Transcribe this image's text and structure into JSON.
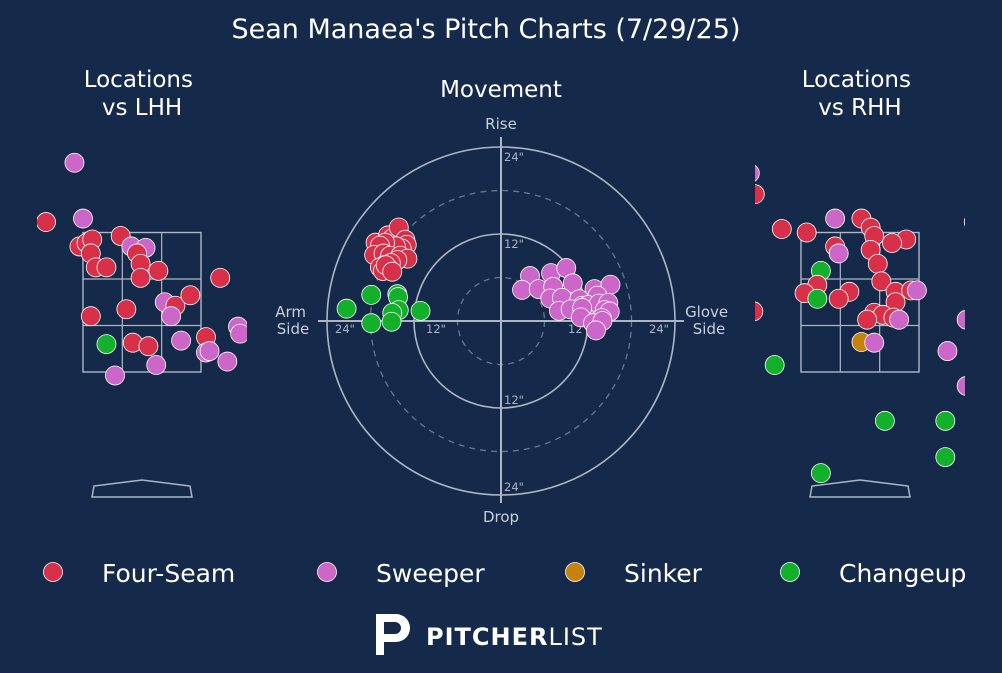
{
  "title": "Sean Manaea's Pitch Charts (7/29/25)",
  "colors": {
    "background": "#152a4b",
    "grid": "#aeb6c4",
    "Four-Seam": "#d9304a",
    "Sweeper": "#cc66c8",
    "Sinker": "#c7820e",
    "Changeup": "#13b02c"
  },
  "legend": [
    {
      "name": "Four-Seam"
    },
    {
      "name": "Sweeper"
    },
    {
      "name": "Sinker"
    },
    {
      "name": "Changeup"
    }
  ],
  "brand": {
    "bold": "PITCHER",
    "light": "LIST"
  },
  "chart_data": [
    {
      "id": "lhh",
      "type": "scatter",
      "title": "Locations\nvs LHH",
      "zone": {
        "left": -0.83,
        "right": 0.83,
        "bottom": 1.5,
        "top": 3.5
      },
      "points": [
        {
          "t": "Sweeper",
          "x": -0.95,
          "y": 4.5
        },
        {
          "t": "Four-Seam",
          "x": -1.35,
          "y": 3.65
        },
        {
          "t": "Sweeper",
          "x": -0.83,
          "y": 3.7
        },
        {
          "t": "Four-Seam",
          "x": -0.88,
          "y": 3.3
        },
        {
          "t": "Four-Seam",
          "x": -0.78,
          "y": 3.35
        },
        {
          "t": "Four-Seam",
          "x": -0.7,
          "y": 3.4
        },
        {
          "t": "Four-Seam",
          "x": -0.72,
          "y": 3.2
        },
        {
          "t": "Four-Seam",
          "x": -0.65,
          "y": 3.0
        },
        {
          "t": "Four-Seam",
          "x": -0.5,
          "y": 3.0
        },
        {
          "t": "Four-Seam",
          "x": -0.3,
          "y": 3.45
        },
        {
          "t": "Sweeper",
          "x": -0.15,
          "y": 3.3
        },
        {
          "t": "Sweeper",
          "x": 0.05,
          "y": 3.28
        },
        {
          "t": "Four-Seam",
          "x": -0.07,
          "y": 3.2
        },
        {
          "t": "Four-Seam",
          "x": -0.02,
          "y": 3.05
        },
        {
          "t": "Four-Seam",
          "x": -0.02,
          "y": 2.85
        },
        {
          "t": "Four-Seam",
          "x": 0.23,
          "y": 2.95
        },
        {
          "t": "Four-Seam",
          "x": -0.22,
          "y": 2.4
        },
        {
          "t": "Sweeper",
          "x": 0.32,
          "y": 2.5
        },
        {
          "t": "Four-Seam",
          "x": 0.47,
          "y": 2.45
        },
        {
          "t": "Four-Seam",
          "x": 0.68,
          "y": 2.6
        },
        {
          "t": "Sweeper",
          "x": 0.41,
          "y": 2.3
        },
        {
          "t": "Four-Seam",
          "x": 1.1,
          "y": 2.85
        },
        {
          "t": "Four-Seam",
          "x": -0.72,
          "y": 2.3
        },
        {
          "t": "Sweeper",
          "x": 1.35,
          "y": 2.15
        },
        {
          "t": "Sweeper",
          "x": 1.38,
          "y": 2.05
        },
        {
          "t": "Changeup",
          "x": -0.5,
          "y": 1.9
        },
        {
          "t": "Four-Seam",
          "x": -0.13,
          "y": 1.92
        },
        {
          "t": "Four-Seam",
          "x": 0.09,
          "y": 1.87
        },
        {
          "t": "Sweeper",
          "x": 0.55,
          "y": 1.95
        },
        {
          "t": "Four-Seam",
          "x": 0.9,
          "y": 2.0
        },
        {
          "t": "Sweeper",
          "x": 0.9,
          "y": 1.78
        },
        {
          "t": "Sweeper",
          "x": 0.95,
          "y": 1.8
        },
        {
          "t": "Sweeper",
          "x": 1.2,
          "y": 1.65
        },
        {
          "t": "Sweeper",
          "x": 0.2,
          "y": 1.6
        },
        {
          "t": "Sweeper",
          "x": -0.38,
          "y": 1.45
        }
      ]
    },
    {
      "id": "movement",
      "type": "scatter",
      "title": "Movement",
      "axis_labels": {
        "top": "Rise",
        "bottom": "Drop",
        "left": "Arm\nSide",
        "right": "Glove\nSide"
      },
      "rings": [
        {
          "r": 6,
          "label": "",
          "dashed": true
        },
        {
          "r": 12,
          "label": "12\"",
          "dashed": false
        },
        {
          "r": 18,
          "label": "",
          "dashed": true
        },
        {
          "r": 24,
          "label": "24\"",
          "dashed": false
        }
      ],
      "points": [
        {
          "t": "Four-Seam",
          "x": -17.3,
          "y": 10.8
        },
        {
          "t": "Four-Seam",
          "x": -15.6,
          "y": 11.8
        },
        {
          "t": "Four-Seam",
          "x": -15.0,
          "y": 11.4
        },
        {
          "t": "Four-Seam",
          "x": -14.1,
          "y": 12.9
        },
        {
          "t": "Four-Seam",
          "x": -13.2,
          "y": 11.2
        },
        {
          "t": "Four-Seam",
          "x": -13.0,
          "y": 10.5
        },
        {
          "t": "Four-Seam",
          "x": -13.7,
          "y": 10.0
        },
        {
          "t": "Four-Seam",
          "x": -14.5,
          "y": 10.3
        },
        {
          "t": "Four-Seam",
          "x": -16.0,
          "y": 10.8
        },
        {
          "t": "Four-Seam",
          "x": -16.7,
          "y": 10.4
        },
        {
          "t": "Four-Seam",
          "x": -17.5,
          "y": 9.1
        },
        {
          "t": "Four-Seam",
          "x": -16.2,
          "y": 9.3
        },
        {
          "t": "Four-Seam",
          "x": -15.3,
          "y": 9.0
        },
        {
          "t": "Four-Seam",
          "x": -13.9,
          "y": 9.0
        },
        {
          "t": "Four-Seam",
          "x": -12.9,
          "y": 8.6
        },
        {
          "t": "Four-Seam",
          "x": -14.3,
          "y": 8.4
        },
        {
          "t": "Four-Seam",
          "x": -15.2,
          "y": 8.0
        },
        {
          "t": "Four-Seam",
          "x": -16.1,
          "y": 7.7
        },
        {
          "t": "Four-Seam",
          "x": -16.7,
          "y": 7.4
        },
        {
          "t": "Four-Seam",
          "x": -15.5,
          "y": 7.2
        },
        {
          "t": "Four-Seam",
          "x": -16.3,
          "y": 6.9
        },
        {
          "t": "Four-Seam",
          "x": -15.9,
          "y": 7.7
        },
        {
          "t": "Four-Seam",
          "x": -15.0,
          "y": 6.8
        },
        {
          "t": "Changeup",
          "x": -21.3,
          "y": 1.7
        },
        {
          "t": "Changeup",
          "x": -17.9,
          "y": 3.6
        },
        {
          "t": "Changeup",
          "x": -14.3,
          "y": 3.7
        },
        {
          "t": "Changeup",
          "x": -14.2,
          "y": 3.3
        },
        {
          "t": "Changeup",
          "x": -14.1,
          "y": 1.5
        },
        {
          "t": "Changeup",
          "x": -15.0,
          "y": 1.1
        },
        {
          "t": "Changeup",
          "x": -11.1,
          "y": 1.4
        },
        {
          "t": "Changeup",
          "x": -17.9,
          "y": -0.3
        },
        {
          "t": "Changeup",
          "x": -15.1,
          "y": -0.1
        },
        {
          "t": "Sweeper",
          "x": 4.0,
          "y": 6.2
        },
        {
          "t": "Sweeper",
          "x": 6.9,
          "y": 6.6
        },
        {
          "t": "Sweeper",
          "x": 9.0,
          "y": 7.3
        },
        {
          "t": "Sweeper",
          "x": 2.9,
          "y": 4.3
        },
        {
          "t": "Sweeper",
          "x": 5.2,
          "y": 4.4
        },
        {
          "t": "Sweeper",
          "x": 7.2,
          "y": 4.7
        },
        {
          "t": "Sweeper",
          "x": 9.9,
          "y": 5.2
        },
        {
          "t": "Sweeper",
          "x": 12.9,
          "y": 4.4
        },
        {
          "t": "Sweeper",
          "x": 15.1,
          "y": 5.0
        },
        {
          "t": "Sweeper",
          "x": 6.8,
          "y": 3.1
        },
        {
          "t": "Sweeper",
          "x": 8.4,
          "y": 3.2
        },
        {
          "t": "Sweeper",
          "x": 10.8,
          "y": 3.0
        },
        {
          "t": "Sweeper",
          "x": 13.3,
          "y": 3.5
        },
        {
          "t": "Sweeper",
          "x": 11.2,
          "y": 2.1
        },
        {
          "t": "Sweeper",
          "x": 12.0,
          "y": 2.2
        },
        {
          "t": "Sweeper",
          "x": 13.5,
          "y": 2.4
        },
        {
          "t": "Sweeper",
          "x": 14.8,
          "y": 2.5
        },
        {
          "t": "Sweeper",
          "x": 8.0,
          "y": 1.4
        },
        {
          "t": "Sweeper",
          "x": 9.6,
          "y": 1.6
        },
        {
          "t": "Sweeper",
          "x": 11.2,
          "y": 1.8
        },
        {
          "t": "Sweeper",
          "x": 14.3,
          "y": 1.5
        },
        {
          "t": "Sweeper",
          "x": 15.0,
          "y": 1.3
        },
        {
          "t": "Sweeper",
          "x": 11.0,
          "y": 0.5
        },
        {
          "t": "Sweeper",
          "x": 13.9,
          "y": 0.4
        },
        {
          "t": "Sweeper",
          "x": 12.7,
          "y": -0.3
        },
        {
          "t": "Sweeper",
          "x": 14.0,
          "y": 0.0
        },
        {
          "t": "Sweeper",
          "x": 13.1,
          "y": -1.3
        }
      ]
    },
    {
      "id": "rhh",
      "type": "scatter",
      "title": "Locations\nvs RHH",
      "zone": {
        "left": -0.83,
        "right": 0.83,
        "bottom": 1.5,
        "top": 3.5
      },
      "points": [
        {
          "t": "Sweeper",
          "x": -1.55,
          "y": 4.35
        },
        {
          "t": "Four-Seam",
          "x": -1.48,
          "y": 4.05
        },
        {
          "t": "Four-Seam",
          "x": -1.1,
          "y": 3.55
        },
        {
          "t": "Four-Seam",
          "x": -0.75,
          "y": 3.5
        },
        {
          "t": "Sweeper",
          "x": -0.35,
          "y": 3.7
        },
        {
          "t": "Four-Seam",
          "x": 0.02,
          "y": 3.7
        },
        {
          "t": "Four-Seam",
          "x": 0.15,
          "y": 3.57
        },
        {
          "t": "Four-Seam",
          "x": 0.2,
          "y": 3.45
        },
        {
          "t": "Four-Seam",
          "x": 0.65,
          "y": 3.4
        },
        {
          "t": "Four-Seam",
          "x": 1.6,
          "y": 3.65
        },
        {
          "t": "Four-Seam",
          "x": 0.45,
          "y": 3.35
        },
        {
          "t": "Four-Seam",
          "x": 0.15,
          "y": 3.25
        },
        {
          "t": "Four-Seam",
          "x": -0.35,
          "y": 3.3
        },
        {
          "t": "Sweeper",
          "x": -0.3,
          "y": 3.2
        },
        {
          "t": "Four-Seam",
          "x": 0.25,
          "y": 3.05
        },
        {
          "t": "Changeup",
          "x": -0.55,
          "y": 2.95
        },
        {
          "t": "Four-Seam",
          "x": -0.6,
          "y": 2.75
        },
        {
          "t": "Four-Seam",
          "x": -0.78,
          "y": 2.63
        },
        {
          "t": "Four-Seam",
          "x": -0.15,
          "y": 2.65
        },
        {
          "t": "Four-Seam",
          "x": 0.3,
          "y": 2.8
        },
        {
          "t": "Four-Seam",
          "x": 0.5,
          "y": 2.65
        },
        {
          "t": "Four-Seam",
          "x": 0.72,
          "y": 2.67
        },
        {
          "t": "Sweeper",
          "x": 0.8,
          "y": 2.67
        },
        {
          "t": "Changeup",
          "x": -0.6,
          "y": 2.55
        },
        {
          "t": "Four-Seam",
          "x": -0.3,
          "y": 2.55
        },
        {
          "t": "Four-Seam",
          "x": 0.5,
          "y": 2.5
        },
        {
          "t": "Four-Seam",
          "x": 0.2,
          "y": 2.35
        },
        {
          "t": "Four-Seam",
          "x": 0.32,
          "y": 2.32
        },
        {
          "t": "Four-Seam",
          "x": 0.47,
          "y": 2.28
        },
        {
          "t": "Four-Seam",
          "x": 0.1,
          "y": 2.25
        },
        {
          "t": "Sweeper",
          "x": 0.55,
          "y": 2.25
        },
        {
          "t": "Four-Seam",
          "x": -1.5,
          "y": 2.37
        },
        {
          "t": "Sweeper",
          "x": 1.5,
          "y": 2.25
        },
        {
          "t": "Sinker",
          "x": 0.02,
          "y": 1.93
        },
        {
          "t": "Sweeper",
          "x": 0.2,
          "y": 1.92
        },
        {
          "t": "Sweeper",
          "x": 1.23,
          "y": 1.8
        },
        {
          "t": "Changeup",
          "x": -1.2,
          "y": 1.6
        },
        {
          "t": "Sweeper",
          "x": 1.5,
          "y": 1.3
        },
        {
          "t": "Changeup",
          "x": 0.35,
          "y": 0.8
        },
        {
          "t": "Changeup",
          "x": 1.2,
          "y": 0.8
        },
        {
          "t": "Changeup",
          "x": 1.2,
          "y": 0.28
        },
        {
          "t": "Changeup",
          "x": -0.55,
          "y": 0.05
        }
      ]
    }
  ]
}
